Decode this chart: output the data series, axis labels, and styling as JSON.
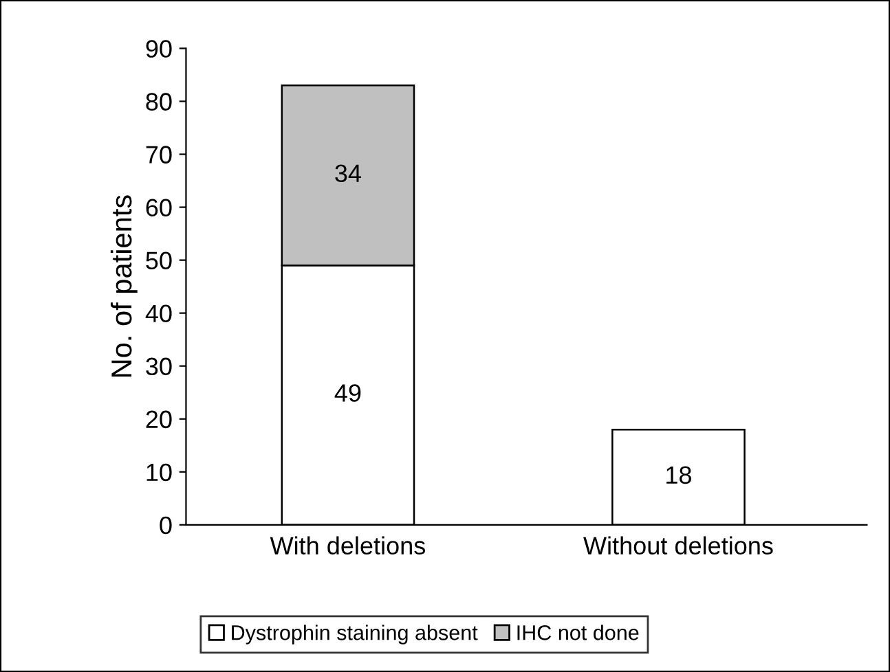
{
  "chart_data": {
    "type": "bar",
    "ylabel": "No. of patients",
    "categories": [
      "With deletions",
      "Without deletions"
    ],
    "series": [
      {
        "name": "Dystrophin staining absent",
        "color": "#ffffff",
        "values": [
          49,
          18
        ]
      },
      {
        "name": "IHC not done",
        "color": "#c0c0c0",
        "values": [
          34,
          null
        ]
      }
    ],
    "stacked": true,
    "data_labels": true,
    "ylim": [
      0,
      90
    ],
    "yticks": [
      0,
      10,
      20,
      30,
      40,
      50,
      60,
      70,
      80,
      90
    ],
    "grid": false,
    "legend": "bottom"
  }
}
